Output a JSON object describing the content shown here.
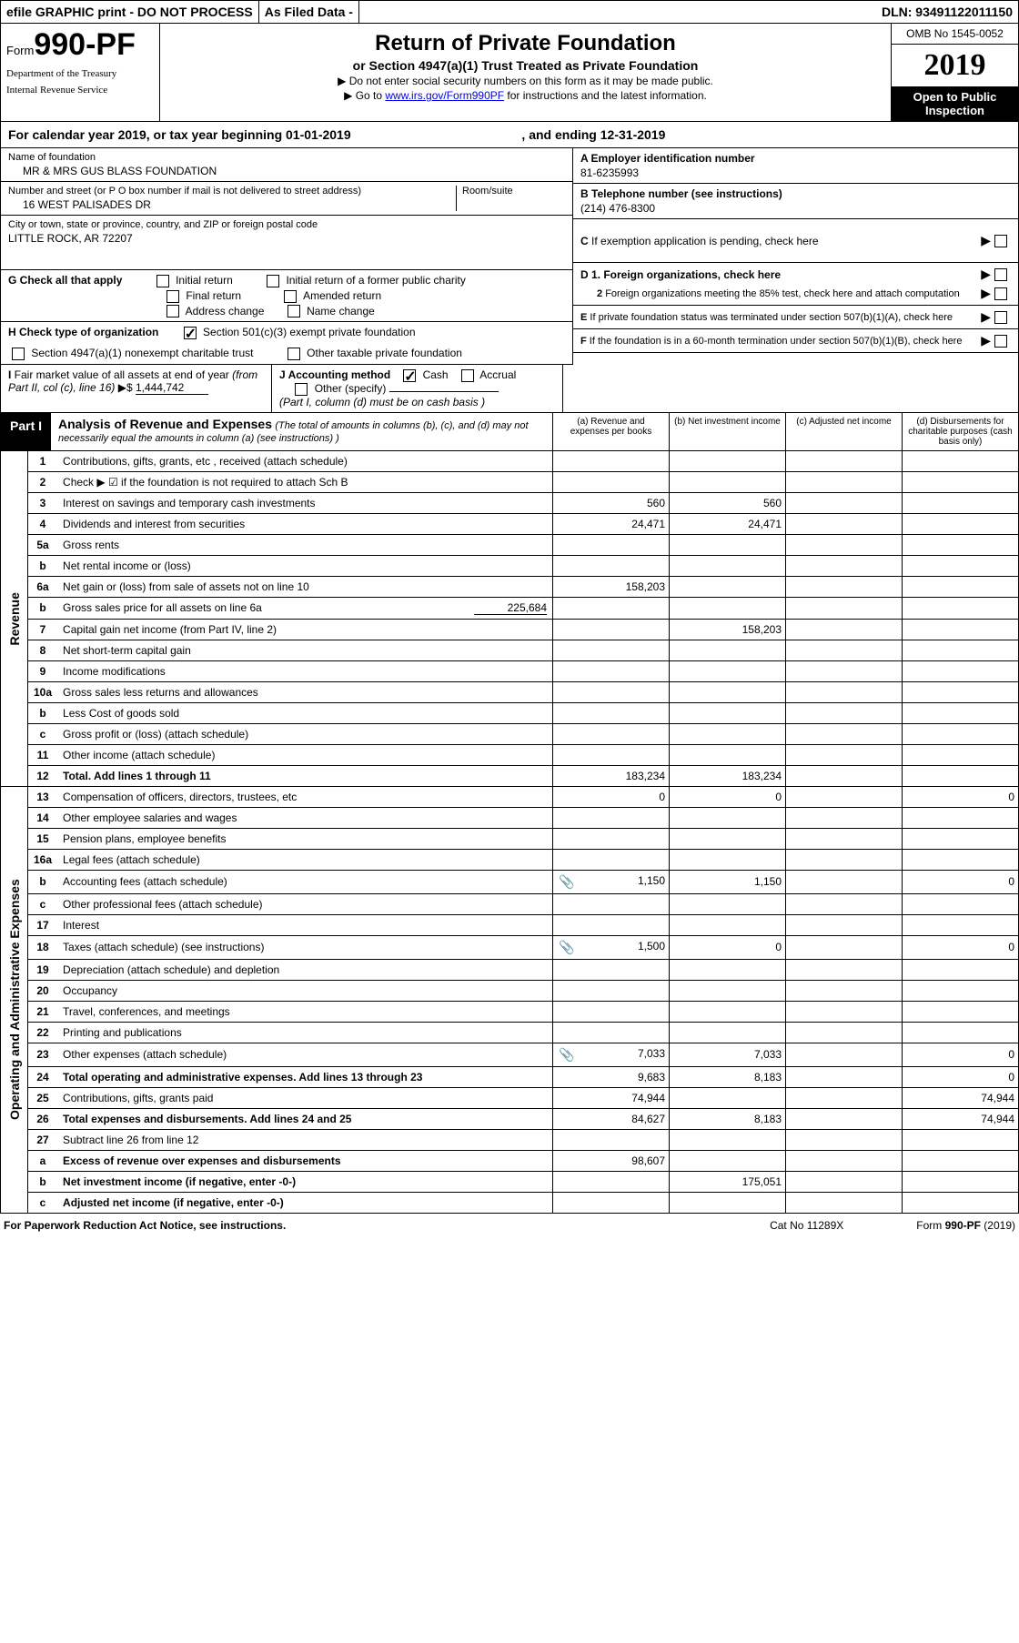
{
  "topbar": {
    "efile": "efile GRAPHIC print - DO NOT PROCESS",
    "asfiled": "As Filed Data -",
    "dln": "DLN: 93491122011150"
  },
  "header": {
    "form_prefix": "Form",
    "form_no": "990-PF",
    "dept1": "Department of the Treasury",
    "dept2": "Internal Revenue Service",
    "title": "Return of Private Foundation",
    "subtitle": "or Section 4947(a)(1) Trust Treated as Private Foundation",
    "instr1": "▶ Do not enter social security numbers on this form as it may be made public.",
    "instr2_pre": "▶ Go to ",
    "instr2_link": "www.irs.gov/Form990PF",
    "instr2_post": " for instructions and the latest information.",
    "omb": "OMB No 1545-0052",
    "year": "2019",
    "open": "Open to Public Inspection"
  },
  "calendar": {
    "text_pre": "For calendar year 2019, or tax year beginning ",
    "begin": "01-01-2019",
    "text_mid": " , and ending ",
    "end": "12-31-2019"
  },
  "info": {
    "name_label": "Name of foundation",
    "name": "MR & MRS GUS BLASS FOUNDATION",
    "street_label": "Number and street (or P O  box number if mail is not delivered to street address)",
    "room_label": "Room/suite",
    "street": "16 WEST PALISADES DR",
    "city_label": "City or town, state or province, country, and ZIP or foreign postal code",
    "city": "LITTLE ROCK, AR  72207",
    "ein_label": "A Employer identification number",
    "ein": "81-6235993",
    "tel_label": "B Telephone number (see instructions)",
    "tel": "(214) 476-8300",
    "c_label": "C If exemption application is pending, check here",
    "d1": "D 1. Foreign organizations, check here",
    "d2": "2 Foreign organizations meeting the 85% test, check here and attach computation",
    "e_label": "E If private foundation status was terminated under section 507(b)(1)(A), check here",
    "f_label": "F If the foundation is in a 60-month termination under section 507(b)(1)(B), check here"
  },
  "g": {
    "label": "G Check all that apply",
    "opts": [
      "Initial return",
      "Initial return of a former public charity",
      "Final return",
      "Amended return",
      "Address change",
      "Name change"
    ]
  },
  "h": {
    "label": "H Check type of organization",
    "opt1": "Section 501(c)(3) exempt private foundation",
    "opt2": "Section 4947(a)(1) nonexempt charitable trust",
    "opt3": "Other taxable private foundation"
  },
  "i": {
    "label": "I Fair market value of all assets at end of year (from Part II, col (c), line 16) ▶$ ",
    "value": "1,444,742"
  },
  "j": {
    "label": "J Accounting method",
    "cash": "Cash",
    "accrual": "Accrual",
    "other": "Other (specify)",
    "note": "(Part I, column (d) must be on cash basis )"
  },
  "part1": {
    "label": "Part I",
    "title": "Analysis of Revenue and Expenses",
    "sub": "(The total of amounts in columns (b), (c), and (d) may not necessarily equal the amounts in column (a) (see instructions) )",
    "col_a": "(a)  Revenue and expenses per books",
    "col_b": "(b)  Net investment income",
    "col_c": "(c)  Adjusted net income",
    "col_d": "(d)  Disbursements for charitable purposes (cash basis only)",
    "rotate_rev": "Revenue",
    "rotate_exp": "Operating and Administrative Expenses"
  },
  "rows": [
    {
      "n": "1",
      "d": "Contributions, gifts, grants, etc , received (attach schedule)"
    },
    {
      "n": "2",
      "d": "Check ▶ ☑ if the foundation is not required to attach Sch  B",
      "nobord": true
    },
    {
      "n": "3",
      "d": "Interest on savings and temporary cash investments",
      "a": "560",
      "b": "560"
    },
    {
      "n": "4",
      "d": "Dividends and interest from securities",
      "a": "24,471",
      "b": "24,471"
    },
    {
      "n": "5a",
      "d": "Gross rents"
    },
    {
      "n": "b",
      "d": "Net rental income or (loss)",
      "inline": true
    },
    {
      "n": "6a",
      "d": "Net gain or (loss) from sale of assets not on line 10",
      "a": "158,203"
    },
    {
      "n": "b",
      "d": "Gross sales price for all assets on line 6a",
      "inline_val": "225,684"
    },
    {
      "n": "7",
      "d": "Capital gain net income (from Part IV, line 2)",
      "b": "158,203"
    },
    {
      "n": "8",
      "d": "Net short-term capital gain"
    },
    {
      "n": "9",
      "d": "Income modifications"
    },
    {
      "n": "10a",
      "d": "Gross sales less returns and allowances",
      "inline": true
    },
    {
      "n": "b",
      "d": "Less  Cost of goods sold",
      "inline": true
    },
    {
      "n": "c",
      "d": "Gross profit or (loss) (attach schedule)"
    },
    {
      "n": "11",
      "d": "Other income (attach schedule)"
    },
    {
      "n": "12",
      "d": "Total. Add lines 1 through 11",
      "bold": true,
      "a": "183,234",
      "b": "183,234"
    }
  ],
  "exp_rows": [
    {
      "n": "13",
      "d": "Compensation of officers, directors, trustees, etc",
      "a": "0",
      "b": "0",
      "dd": "0"
    },
    {
      "n": "14",
      "d": "Other employee salaries and wages"
    },
    {
      "n": "15",
      "d": "Pension plans, employee benefits"
    },
    {
      "n": "16a",
      "d": "Legal fees (attach schedule)"
    },
    {
      "n": "b",
      "d": "Accounting fees (attach schedule)",
      "clip": true,
      "a": "1,150",
      "b": "1,150",
      "dd": "0"
    },
    {
      "n": "c",
      "d": "Other professional fees (attach schedule)"
    },
    {
      "n": "17",
      "d": "Interest"
    },
    {
      "n": "18",
      "d": "Taxes (attach schedule) (see instructions)",
      "clip": true,
      "a": "1,500",
      "b": "0",
      "dd": "0"
    },
    {
      "n": "19",
      "d": "Depreciation (attach schedule) and depletion"
    },
    {
      "n": "20",
      "d": "Occupancy"
    },
    {
      "n": "21",
      "d": "Travel, conferences, and meetings"
    },
    {
      "n": "22",
      "d": "Printing and publications"
    },
    {
      "n": "23",
      "d": "Other expenses (attach schedule)",
      "clip": true,
      "a": "7,033",
      "b": "7,033",
      "dd": "0"
    },
    {
      "n": "24",
      "d": "Total operating and administrative expenses. Add lines 13 through 23",
      "bold": true,
      "a": "9,683",
      "b": "8,183",
      "dd": "0"
    },
    {
      "n": "25",
      "d": "Contributions, gifts, grants paid",
      "a": "74,944",
      "dd": "74,944"
    },
    {
      "n": "26",
      "d": "Total expenses and disbursements. Add lines 24 and 25",
      "bold": true,
      "a": "84,627",
      "b": "8,183",
      "dd": "74,944"
    },
    {
      "n": "27",
      "d": "Subtract line 26 from line 12"
    },
    {
      "n": "a",
      "d": "Excess of revenue over expenses and disbursements",
      "bold": true,
      "a": "98,607"
    },
    {
      "n": "b",
      "d": "Net investment income (if negative, enter -0-)",
      "bold": true,
      "b": "175,051"
    },
    {
      "n": "c",
      "d": "Adjusted net income (if negative, enter -0-)",
      "bold": true
    }
  ],
  "footer": {
    "left": "For Paperwork Reduction Act Notice, see instructions.",
    "center": "Cat No 11289X",
    "right_pre": "Form ",
    "right_form": "990-PF",
    "right_post": " (2019)"
  }
}
